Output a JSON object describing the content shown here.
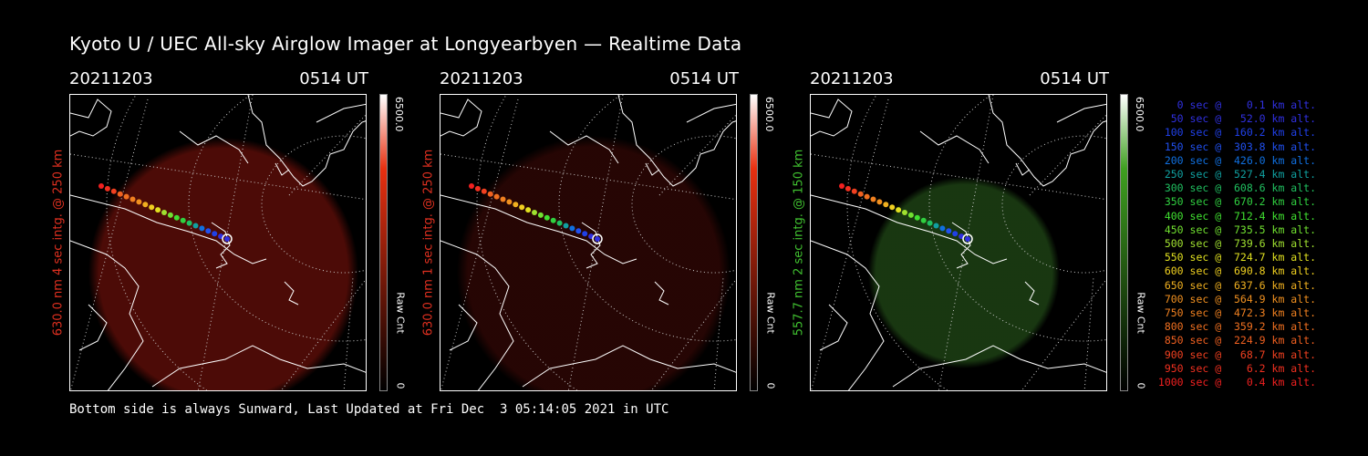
{
  "title": "Kyoto U / UEC All-sky Airglow Imager at Longyearbyen — Realtime Data",
  "footer": "Bottom side is always Sunward, Last Updated at Fri Dec  3 05:14:05 2021 in UTC",
  "panels": [
    {
      "date": "20211203",
      "time": "0514 UT",
      "ylabel": "630.0 nm 4 sec intg. @ 250 km",
      "label_color": "#e03020",
      "cbar_max": "6500.0",
      "cbar_min": "0",
      "cbar_unit": "Raw Cnt",
      "glow_color": "#5a0d08",
      "glow_opacity": 0.85,
      "cbar_top": "#e83010"
    },
    {
      "date": "20211203",
      "time": "0514 UT",
      "ylabel": "630.0 nm 1 sec intg. @ 250 km",
      "label_color": "#e03020",
      "cbar_max": "6500.0",
      "cbar_min": "0",
      "cbar_unit": "Raw Cnt",
      "glow_color": "#2a0604",
      "glow_opacity": 0.9,
      "cbar_top": "#e83010"
    },
    {
      "date": "20211203",
      "time": "0514 UT",
      "ylabel": "557.7 nm 2 sec intg. @ 150 km",
      "label_color": "#40c030",
      "cbar_max": "6500.0",
      "cbar_min": "0",
      "cbar_unit": "Raw Cnt",
      "glow_color": "#1a3a12",
      "glow_opacity": 0.95,
      "cbar_top": "#3fa020"
    }
  ],
  "legend": [
    {
      "text": "   0 sec @    0.1 km alt.",
      "color": "#3030e0"
    },
    {
      "text": "  50 sec @   52.0 km alt.",
      "color": "#3030e0"
    },
    {
      "text": " 100 sec @  160.2 km alt.",
      "color": "#2040e8"
    },
    {
      "text": " 150 sec @  303.8 km alt.",
      "color": "#2050f0"
    },
    {
      "text": " 200 sec @  426.0 km alt.",
      "color": "#1070e0"
    },
    {
      "text": " 250 sec @  527.4 km alt.",
      "color": "#10a0a0"
    },
    {
      "text": " 300 sec @  608.6 km alt.",
      "color": "#20c060"
    },
    {
      "text": " 350 sec @  670.2 km alt.",
      "color": "#30d040"
    },
    {
      "text": " 400 sec @  712.4 km alt.",
      "color": "#40e030"
    },
    {
      "text": " 450 sec @  735.5 km alt.",
      "color": "#70e030"
    },
    {
      "text": " 500 sec @  739.6 km alt.",
      "color": "#a0e030"
    },
    {
      "text": " 550 sec @  724.7 km alt.",
      "color": "#e0e020"
    },
    {
      "text": " 600 sec @  690.8 km alt.",
      "color": "#f0d020"
    },
    {
      "text": " 650 sec @  637.6 km alt.",
      "color": "#f0b020"
    },
    {
      "text": " 700 sec @  564.9 km alt.",
      "color": "#f09020"
    },
    {
      "text": " 750 sec @  472.3 km alt.",
      "color": "#f08020"
    },
    {
      "text": " 800 sec @  359.2 km alt.",
      "color": "#f07020"
    },
    {
      "text": " 850 sec @  224.9 km alt.",
      "color": "#f06020"
    },
    {
      "text": " 900 sec @   68.7 km alt.",
      "color": "#f04020"
    },
    {
      "text": " 950 sec @    6.2 km alt.",
      "color": "#f03020"
    },
    {
      "text": "1000 sec @    0.4 km alt.",
      "color": "#f02020"
    }
  ]
}
